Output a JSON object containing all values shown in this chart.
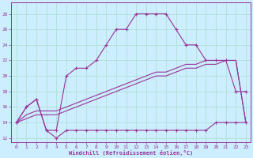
{
  "xlabel": "Windchill (Refroidissement éolien,°C)",
  "bg_color": "#cceeff",
  "grid_color": "#aaddcc",
  "line_color": "#993399",
  "xlim": [
    -0.5,
    23.5
  ],
  "ylim": [
    11.5,
    29.5
  ],
  "xticks": [
    0,
    1,
    2,
    3,
    4,
    5,
    6,
    7,
    8,
    9,
    10,
    11,
    12,
    13,
    14,
    15,
    16,
    17,
    18,
    19,
    20,
    21,
    22,
    23
  ],
  "yticks": [
    12,
    14,
    16,
    18,
    20,
    22,
    24,
    26,
    28
  ],
  "curve_upper_x": [
    0,
    1,
    2,
    3,
    4,
    5,
    6,
    7,
    8,
    9,
    10,
    11,
    12,
    13,
    14,
    15,
    16,
    17,
    18,
    19,
    20,
    21,
    22,
    23
  ],
  "curve_upper_y": [
    14,
    16,
    17,
    13,
    13,
    20,
    21,
    21,
    22,
    24,
    26,
    26,
    28,
    28,
    28,
    28,
    26,
    24,
    24,
    22,
    22,
    22,
    18,
    18
  ],
  "curve_flat_x": [
    0,
    1,
    2,
    3,
    4,
    5,
    6,
    7,
    8,
    9,
    10,
    11,
    12,
    13,
    14,
    15,
    16,
    17,
    18,
    19,
    20,
    21,
    22,
    23
  ],
  "curve_flat_y": [
    14,
    16,
    17,
    13,
    12,
    13,
    13,
    13,
    13,
    13,
    13,
    13,
    13,
    13,
    13,
    13,
    13,
    13,
    13,
    13,
    14,
    14,
    14,
    14
  ],
  "curve_diag1_x": [
    0,
    1,
    2,
    3,
    4,
    5,
    6,
    7,
    8,
    9,
    10,
    11,
    12,
    13,
    14,
    15,
    16,
    17,
    18,
    19,
    20,
    21,
    22,
    23
  ],
  "curve_diag1_y": [
    14,
    14.5,
    15,
    15,
    15,
    15.5,
    16,
    16.5,
    17,
    17.5,
    18,
    18.5,
    19,
    19.5,
    20,
    20,
    20.5,
    21,
    21,
    21.5,
    21.5,
    22,
    22,
    14
  ],
  "curve_diag2_x": [
    0,
    1,
    2,
    3,
    4,
    5,
    6,
    7,
    8,
    9,
    10,
    11,
    12,
    13,
    14,
    15,
    16,
    17,
    18,
    19,
    20,
    21,
    22,
    23
  ],
  "curve_diag2_y": [
    14,
    15,
    15.5,
    15.5,
    15.5,
    16,
    16.5,
    17,
    17.5,
    18,
    18.5,
    19,
    19.5,
    20,
    20.5,
    20.5,
    21,
    21.5,
    21.5,
    22,
    22,
    22,
    22,
    14
  ]
}
